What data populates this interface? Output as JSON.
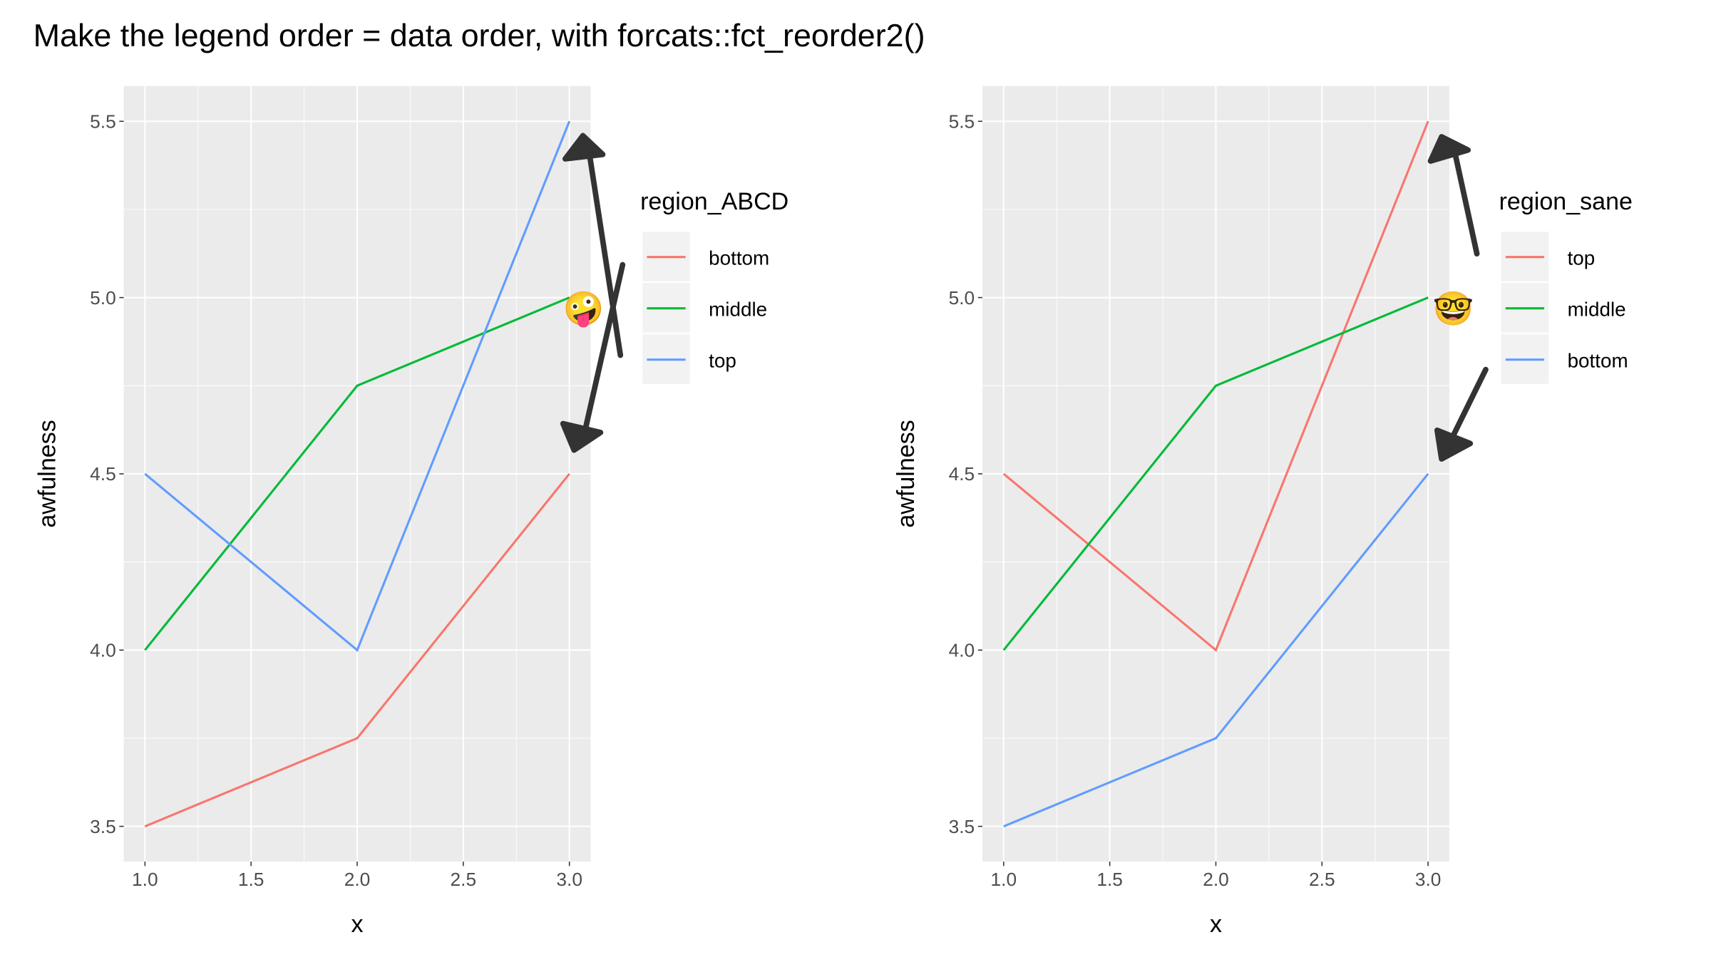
{
  "title": "Make the legend order = data order, with forcats::fct_reorder2()",
  "colors": {
    "red": "#F8766D",
    "green": "#00BA38",
    "blue": "#619CFF",
    "panel": "#EBEBEB",
    "arrow": "#333333"
  },
  "chart_data": [
    {
      "type": "line",
      "xlabel": "x",
      "ylabel": "awfulness",
      "xlim": [
        0.9,
        3.1
      ],
      "ylim": [
        3.4,
        5.6
      ],
      "x_ticks": [
        "1.0",
        "1.5",
        "2.0",
        "2.5",
        "3.0"
      ],
      "y_ticks": [
        "3.5",
        "4.0",
        "4.5",
        "5.0",
        "5.5"
      ],
      "grid": true,
      "legend_title": "region_ABCD",
      "legend_position": "right",
      "annotation_emoji": "🤪",
      "annotation_icon": "crossed-double-arrow-icon",
      "x": [
        1,
        2,
        3
      ],
      "series": [
        {
          "name": "bottom",
          "color": "#F8766D",
          "values": [
            3.5,
            3.75,
            4.5
          ]
        },
        {
          "name": "middle",
          "color": "#00BA38",
          "values": [
            4.0,
            4.75,
            5.0
          ]
        },
        {
          "name": "top",
          "color": "#619CFF",
          "values": [
            4.5,
            4.0,
            5.5
          ]
        }
      ]
    },
    {
      "type": "line",
      "xlabel": "x",
      "ylabel": "awfulness",
      "xlim": [
        0.9,
        3.1
      ],
      "ylim": [
        3.4,
        5.6
      ],
      "x_ticks": [
        "1.0",
        "1.5",
        "2.0",
        "2.5",
        "3.0"
      ],
      "y_ticks": [
        "3.5",
        "4.0",
        "4.5",
        "5.0",
        "5.5"
      ],
      "grid": true,
      "legend_title": "region_sane",
      "legend_position": "right",
      "annotation_emoji": "🤓",
      "annotation_icon": "parallel-arrows-icon",
      "x": [
        1,
        2,
        3
      ],
      "series": [
        {
          "name": "top",
          "color": "#F8766D",
          "values": [
            4.5,
            4.0,
            5.5
          ]
        },
        {
          "name": "middle",
          "color": "#00BA38",
          "values": [
            4.0,
            4.75,
            5.0
          ]
        },
        {
          "name": "bottom",
          "color": "#619CFF",
          "values": [
            3.5,
            3.75,
            4.5
          ]
        }
      ]
    }
  ]
}
